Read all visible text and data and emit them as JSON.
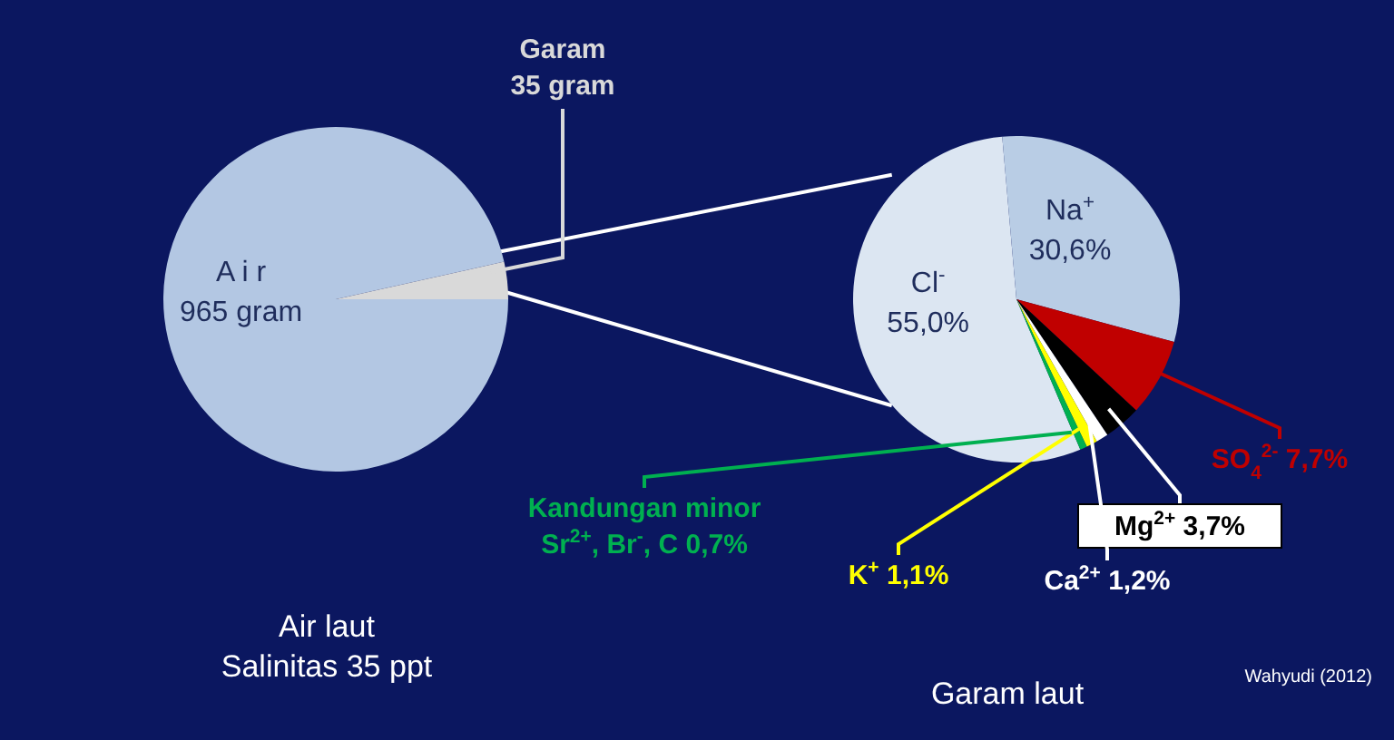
{
  "chart_data": [
    {
      "type": "pie",
      "title": "Air laut",
      "subtitle": "Salinitas 35 ppt",
      "categories": [
        "A i r",
        "Garam"
      ],
      "values": [
        965,
        35
      ],
      "colors": [
        "#b3c7e3",
        "#d9d9d9"
      ],
      "value_labels": [
        "965 gram",
        "35 gram"
      ]
    },
    {
      "type": "pie",
      "title": "Garam laut",
      "categories": [
        "Cl$^{-}$",
        "Na$^{+}$",
        "SO$_{4}$$^{2-}$",
        "Mg$^{2+}$",
        "Ca$^{2+}$",
        "K$^{+}$",
        "Kandungan minor\nSr$^{2+}$, Br$^{-}$, C"
      ],
      "values": [
        55.0,
        30.6,
        7.7,
        3.7,
        1.2,
        1.1,
        0.7
      ],
      "colors": [
        "#dce6f2",
        "#b9cde5",
        "#c00000",
        "#000000",
        "#ffffff",
        "#ffff00",
        "#00b050"
      ],
      "value_labels": [
        "55,0%",
        "30,6%",
        "7,7%",
        "3,7%",
        "1,2%",
        "1,1%",
        "0,7%"
      ],
      "annotations": [
        "Wahyudi (2012)"
      ]
    }
  ]
}
